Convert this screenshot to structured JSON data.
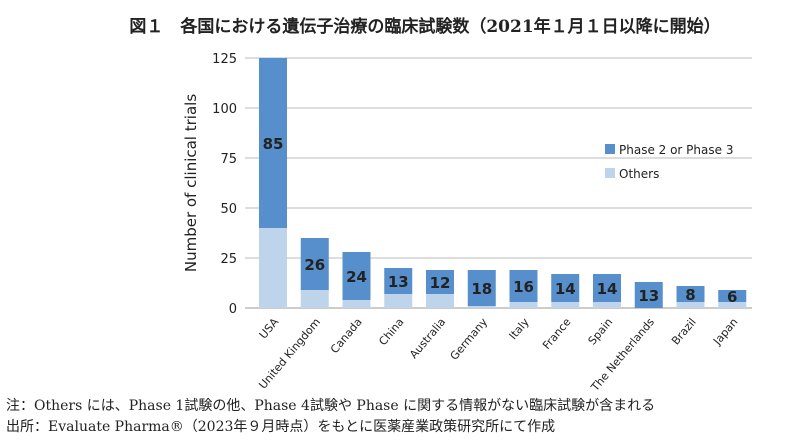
{
  "title": "図１　各国における遺伝子治療の臨床試験数（2021年１月１日以降に開始）",
  "notes": [
    "注：Others には、Phase 1試験の他、Phase 4試験や Phase に関する情報がない臨床試験が含まれる",
    "出所：Evaluate Pharma®（2023年９月時点）をもとに医薬産業政策研究所にて作成"
  ],
  "chart_data": {
    "type": "bar",
    "stacked": true,
    "categories": [
      "USA",
      "United Kingdom",
      "Canada",
      "China",
      "Australia",
      "Germany",
      "Italy",
      "France",
      "Spain",
      "The Netherlands",
      "Brazil",
      "Japan"
    ],
    "series": [
      {
        "name": "Others",
        "color": "#BDD4EB",
        "values": [
          40,
          9,
          4,
          7,
          7,
          1,
          3,
          3,
          3,
          0,
          3,
          3
        ]
      },
      {
        "name": "Phase 2 or Phase 3",
        "color": "#568FCB",
        "values": [
          85,
          26,
          24,
          13,
          12,
          18,
          16,
          14,
          14,
          13,
          8,
          6
        ],
        "data_labels": true
      }
    ],
    "ylabel": "Number of clinical trials",
    "xlabel": "",
    "ylim": [
      0,
      125
    ],
    "yticks": [
      "0",
      "25",
      "50",
      "75",
      "100",
      "125"
    ],
    "grid": true,
    "legend": "right"
  }
}
